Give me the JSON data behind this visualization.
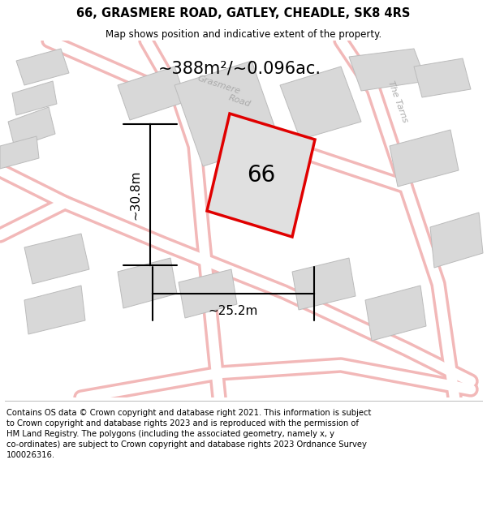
{
  "title": "66, GRASMERE ROAD, GATLEY, CHEADLE, SK8 4RS",
  "subtitle": "Map shows position and indicative extent of the property.",
  "footer": "Contains OS data © Crown copyright and database right 2021. This information is subject to Crown copyright and database rights 2023 and is reproduced with the permission of HM Land Registry. The polygons (including the associated geometry, namely x, y co-ordinates) are subject to Crown copyright and database rights 2023 Ordnance Survey 100026316.",
  "area_label": "~388m²/~0.096ac.",
  "width_label": "~25.2m",
  "height_label": "~30.8m",
  "number_label": "66",
  "map_bg": "#ffffff",
  "road_color": "#f2b8b8",
  "road_center": "#ffffff",
  "building_fill": "#d8d8d8",
  "building_edge": "#bbbbbb",
  "highlight_fill": "#e0e0e0",
  "highlight_edge": "#e00000",
  "road_label_color": "#aaaaaa",
  "title_fontsize": 10.5,
  "subtitle_fontsize": 8.5,
  "footer_fontsize": 7.2,
  "area_fontsize": 15,
  "number_fontsize": 20,
  "dim_fontsize": 11
}
